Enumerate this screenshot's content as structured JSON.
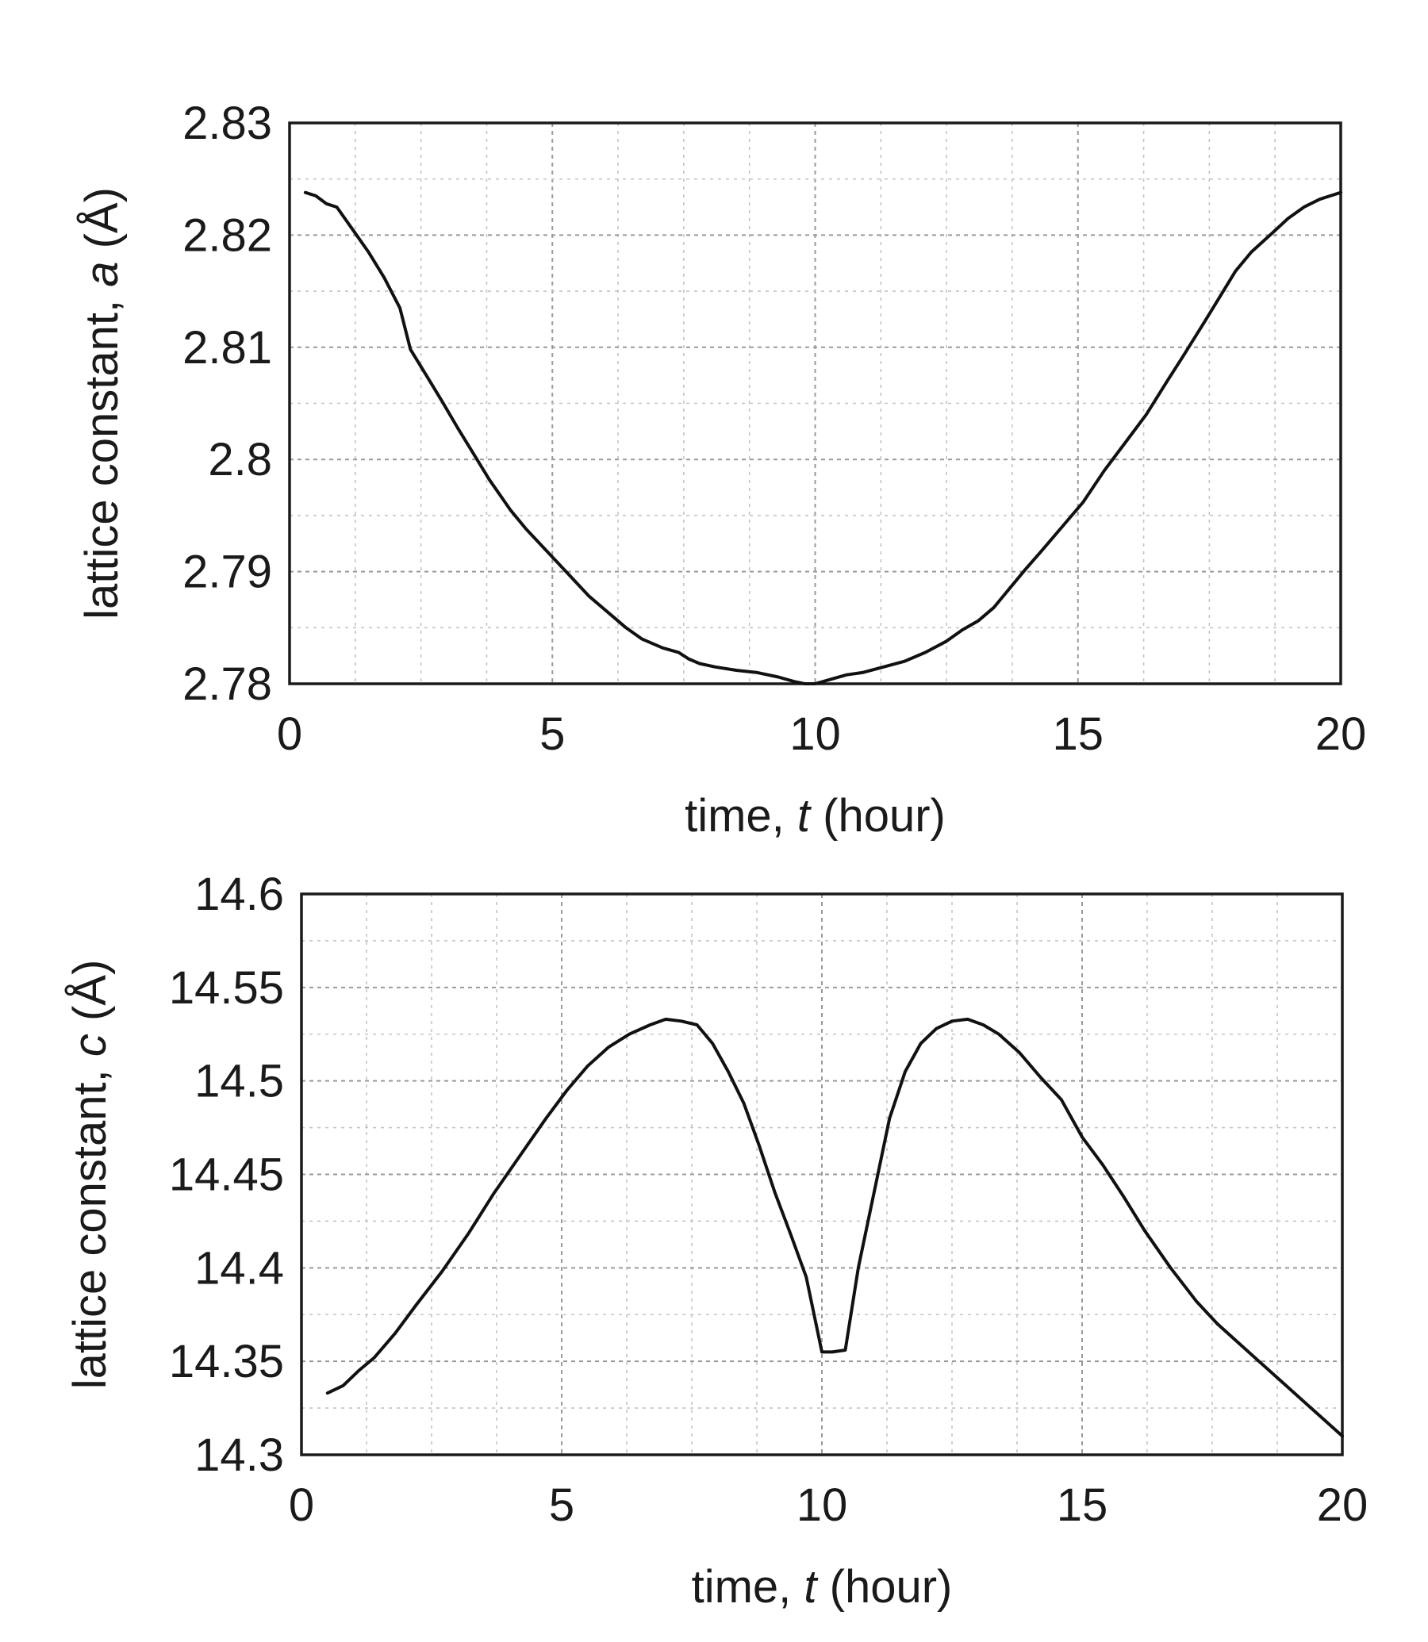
{
  "chart_data": [
    {
      "type": "line",
      "xlabel": {
        "prefix": "time, ",
        "var": "t",
        "suffix": " (hour)"
      },
      "ylabel": {
        "prefix": "lattice constant, ",
        "var": "a",
        "suffix": " (Å)"
      },
      "xlim": [
        0,
        20
      ],
      "ylim": [
        2.78,
        2.83
      ],
      "x_ticks": [
        0,
        5,
        10,
        15,
        20
      ],
      "x_tick_labels": [
        "0",
        "5",
        "10",
        "15",
        "20"
      ],
      "y_ticks": [
        2.78,
        2.79,
        2.8,
        2.81,
        2.82,
        2.83
      ],
      "y_tick_labels": [
        "2.78",
        "2.79",
        "2.8",
        "2.81",
        "2.82",
        "2.83"
      ],
      "x_minor_step": 1.25,
      "y_minor_step": 0.005,
      "grid": true,
      "series": [
        {
          "x": [
            0.3,
            0.5,
            0.7,
            0.9,
            1.2,
            1.5,
            1.8,
            2.1,
            2.3,
            2.6,
            2.9,
            3.2,
            3.5,
            3.8,
            4.2,
            4.5,
            4.9,
            5.3,
            5.7,
            6.1,
            6.4,
            6.7,
            7.1,
            7.4,
            7.6,
            7.8,
            8.1,
            8.5,
            8.9,
            9.3,
            9.6,
            9.8,
            10.0,
            10.3,
            10.6,
            10.9,
            11.3,
            11.7,
            12.1,
            12.5,
            12.8,
            13.1,
            13.4,
            13.7,
            14.0,
            14.3,
            14.7,
            15.1,
            15.5,
            15.9,
            16.3,
            16.7,
            17.0,
            17.4,
            17.7,
            18.0,
            18.3,
            18.7,
            19.0,
            19.3,
            19.6,
            19.8,
            20.0
          ],
          "y": [
            2.8238,
            2.8235,
            2.8228,
            2.8225,
            2.8205,
            2.8185,
            2.8162,
            2.8135,
            2.8098,
            2.8075,
            2.8052,
            2.8028,
            2.8005,
            2.7982,
            2.7955,
            2.7938,
            2.7918,
            2.7898,
            2.7878,
            2.7862,
            2.785,
            2.784,
            2.7832,
            2.7828,
            2.7822,
            2.7818,
            2.7815,
            2.7812,
            2.781,
            2.7806,
            2.7802,
            2.78,
            2.78,
            2.7804,
            2.7808,
            2.781,
            2.7815,
            2.782,
            2.7828,
            2.7838,
            2.7848,
            2.7856,
            2.7868,
            2.7885,
            2.7902,
            2.7918,
            2.794,
            2.7962,
            2.799,
            2.8015,
            2.804,
            2.807,
            2.8092,
            2.8122,
            2.8145,
            2.8168,
            2.8185,
            2.8202,
            2.8215,
            2.8225,
            2.8232,
            2.8235,
            2.8238
          ]
        }
      ]
    },
    {
      "type": "line",
      "xlabel": {
        "prefix": "time, ",
        "var": "t",
        "suffix": " (hour)"
      },
      "ylabel": {
        "prefix": "lattice constant, ",
        "var": "c",
        "suffix": " (Å)"
      },
      "xlim": [
        0,
        20
      ],
      "ylim": [
        14.3,
        14.6
      ],
      "x_ticks": [
        0,
        5,
        10,
        15,
        20
      ],
      "x_tick_labels": [
        "0",
        "5",
        "10",
        "15",
        "20"
      ],
      "y_ticks": [
        14.3,
        14.35,
        14.4,
        14.45,
        14.5,
        14.55,
        14.6
      ],
      "y_tick_labels": [
        "14.3",
        "14.35",
        "14.4",
        "14.45",
        "14.5",
        "14.55",
        "14.6"
      ],
      "x_minor_step": 1.25,
      "y_minor_step": 0.025,
      "grid": true,
      "series": [
        {
          "x": [
            0.5,
            0.8,
            1.1,
            1.4,
            1.8,
            2.2,
            2.7,
            3.2,
            3.7,
            4.2,
            4.7,
            5.1,
            5.5,
            5.9,
            6.3,
            6.7,
            7.0,
            7.3,
            7.6,
            7.9,
            8.2,
            8.5,
            8.8,
            9.1,
            9.4,
            9.7,
            10.0,
            10.2,
            10.45,
            10.7,
            11.0,
            11.3,
            11.6,
            11.9,
            12.2,
            12.5,
            12.8,
            13.1,
            13.4,
            13.8,
            14.2,
            14.6,
            15.0,
            15.4,
            15.8,
            16.2,
            16.7,
            17.2,
            17.6,
            18.0,
            18.4,
            18.8,
            19.2,
            19.6,
            20.0
          ],
          "y": [
            14.333,
            14.337,
            14.345,
            14.352,
            14.365,
            14.38,
            14.398,
            14.418,
            14.44,
            14.46,
            14.48,
            14.495,
            14.508,
            14.518,
            14.525,
            14.53,
            14.533,
            14.532,
            14.53,
            14.52,
            14.505,
            14.488,
            14.465,
            14.44,
            14.418,
            14.395,
            14.355,
            14.355,
            14.356,
            14.4,
            14.44,
            14.48,
            14.505,
            14.52,
            14.528,
            14.532,
            14.533,
            14.53,
            14.525,
            14.515,
            14.502,
            14.49,
            14.47,
            14.455,
            14.438,
            14.42,
            14.4,
            14.382,
            14.37,
            14.36,
            14.35,
            14.34,
            14.33,
            14.32,
            14.31
          ]
        }
      ]
    }
  ]
}
